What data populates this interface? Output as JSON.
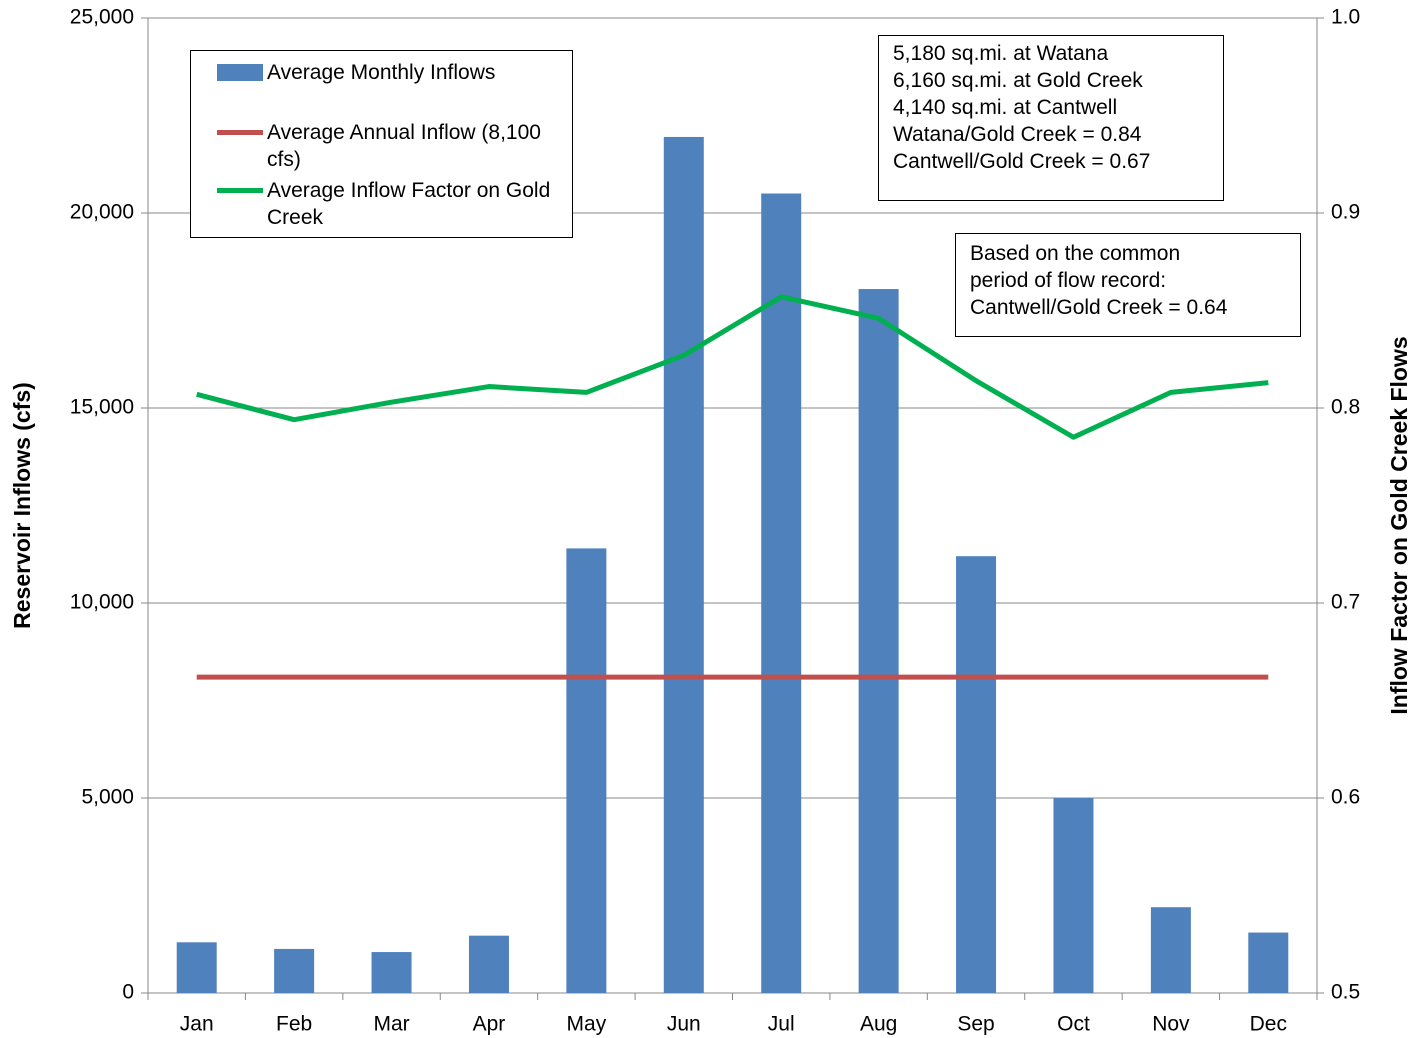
{
  "chart_data": {
    "type": "bar",
    "categories": [
      "Jan",
      "Feb",
      "Mar",
      "Apr",
      "May",
      "Jun",
      "Jul",
      "Aug",
      "Sep",
      "Oct",
      "Nov",
      "Dec"
    ],
    "series": [
      {
        "name": "Average Monthly Inflows",
        "type": "bar",
        "color": "#4f81bd",
        "values": [
          1300,
          1130,
          1050,
          1470,
          11400,
          21950,
          20500,
          18050,
          11200,
          5000,
          2200,
          1550
        ]
      },
      {
        "name": "Average Annual Inflow (8,100 cfs)",
        "type": "line",
        "color": "#c0504d",
        "values": [
          8100,
          8100,
          8100,
          8100,
          8100,
          8100,
          8100,
          8100,
          8100,
          8100,
          8100,
          8100
        ]
      },
      {
        "name": "Average Inflow Factor on Gold Creek",
        "type": "line",
        "axis": "y2",
        "color": "#00b050",
        "values": [
          0.807,
          0.794,
          0.803,
          0.811,
          0.808,
          0.827,
          0.857,
          0.846,
          0.814,
          0.785,
          0.808,
          0.813
        ]
      }
    ],
    "ylabel": "Reservoir Inflows (cfs)",
    "y2label": "Inflow Factor on Gold Creek Flows",
    "ylim": [
      0,
      25000
    ],
    "yticks": [
      0,
      {
        "value": 5000,
        "label": "5,000"
      },
      {
        "value": 10000,
        "label": "10,000"
      },
      {
        "value": 15000,
        "label": "15,000"
      },
      {
        "value": 20000,
        "label": "20,000"
      },
      {
        "value": 25000,
        "label": "25,000"
      }
    ],
    "y2lim": [
      0.5,
      1.0
    ],
    "y2ticks": [
      0.5,
      0.6,
      0.7,
      0.8,
      0.9,
      {
        "value": 1.0,
        "label": "1.0"
      }
    ],
    "grid": true,
    "legend": "upper left",
    "annotations": [
      {
        "lines": [
          "5,180 sq.mi. at Watana",
          "6,160 sq.mi. at Gold Creek",
          "4,140 sq.mi. at Cantwell",
          "Watana/Gold Creek = 0.84",
          "Cantwell/Gold Creek = 0.67"
        ]
      },
      {
        "lines": [
          "Based on the common",
          "period of flow record:",
          "Cantwell/Gold Creek = 0.64"
        ]
      }
    ]
  }
}
